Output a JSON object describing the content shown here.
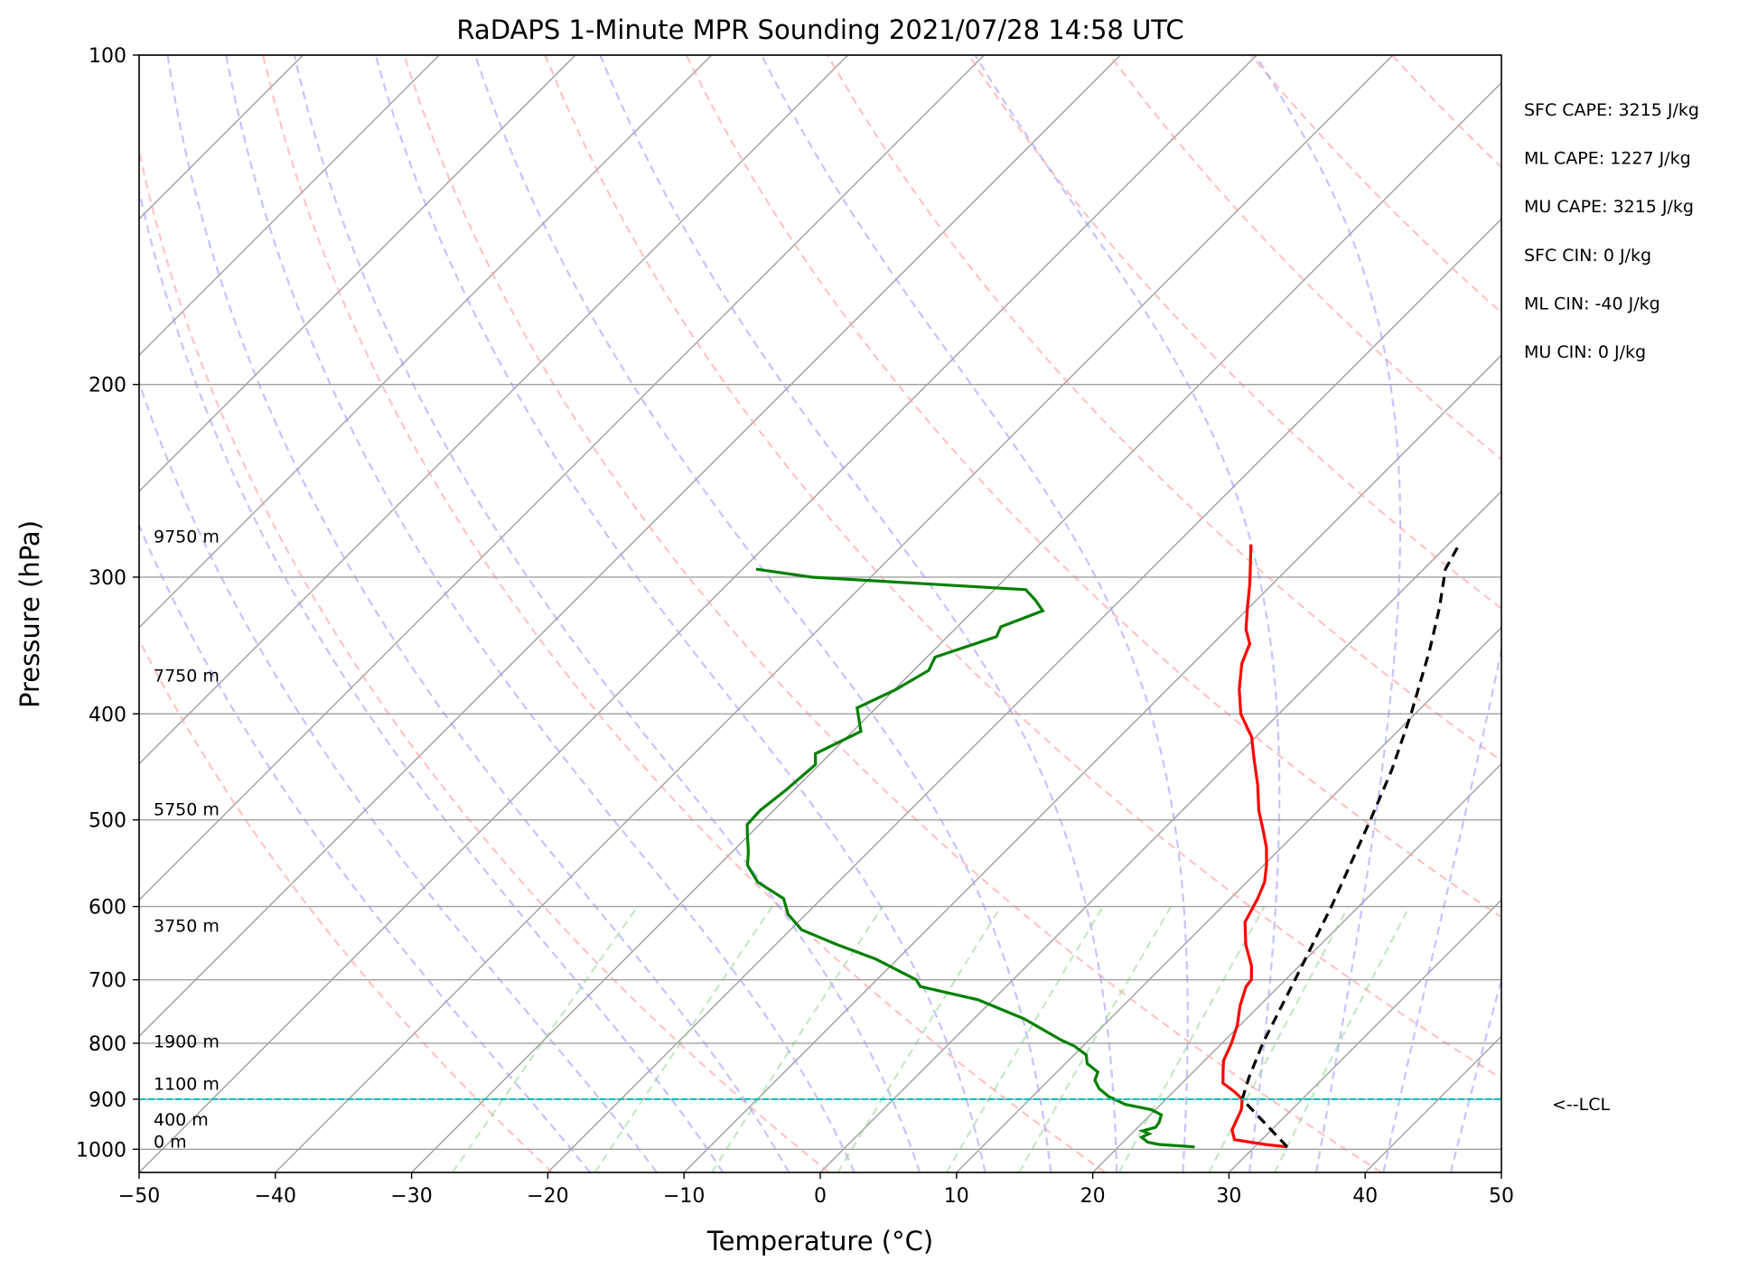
{
  "chart_data": {
    "type": "line",
    "subtype": "skew-t log-p diagram",
    "title": "RaDAPS 1-Minute MPR Sounding 2021/07/28 14:58 UTC",
    "xlabel": "Temperature (°C)",
    "ylabel": "Pressure (hPa)",
    "xlim": [
      -50,
      50
    ],
    "ylim": [
      1050,
      100
    ],
    "y_scale": "log",
    "skew_degrees": 45,
    "x_ticks": [
      -50,
      -40,
      -30,
      -20,
      -10,
      0,
      10,
      20,
      30,
      40,
      50
    ],
    "y_ticks": [
      1000,
      900,
      800,
      700,
      600,
      500,
      400,
      300,
      200,
      100
    ],
    "grid": "horizontal at pressure ticks",
    "colors": {
      "temperature": "#ff0000",
      "dewpoint": "#008000",
      "parcel": "#000000",
      "lcl_line": "#00bfbf",
      "isotherms": "#a0a0a0",
      "dry_adiabats": "#ff9c9c",
      "moist_adiabats": "#9c9cff",
      "mixing_ratio": "#8cd08c"
    },
    "series": [
      {
        "kind": "temperature",
        "points": [
          [
            32.4,
            995
          ],
          [
            30.6,
            990
          ],
          [
            28.0,
            980
          ],
          [
            27.1,
            960
          ],
          [
            26.3,
            920
          ],
          [
            25.6,
            900
          ],
          [
            24.4,
            885
          ],
          [
            23.0,
            870
          ],
          [
            22.2,
            850
          ],
          [
            21.4,
            830
          ],
          [
            20.7,
            800
          ],
          [
            19.8,
            770
          ],
          [
            18.6,
            740
          ],
          [
            17.6,
            710
          ],
          [
            17.5,
            700
          ],
          [
            16.5,
            680
          ],
          [
            14.5,
            650
          ],
          [
            12.8,
            620
          ],
          [
            12.0,
            590
          ],
          [
            11.3,
            570
          ],
          [
            10.2,
            550
          ],
          [
            8.9,
            530
          ],
          [
            7.3,
            510
          ],
          [
            5.6,
            490
          ],
          [
            3.7,
            465
          ],
          [
            1.5,
            440
          ],
          [
            -0.3,
            420
          ],
          [
            -2.8,
            400
          ],
          [
            -4.7,
            380
          ],
          [
            -6.4,
            360
          ],
          [
            -7.3,
            345
          ],
          [
            -8.6,
            335
          ],
          [
            -10.1,
            320
          ],
          [
            -11.6,
            305
          ],
          [
            -13.3,
            290
          ],
          [
            -14.5,
            280
          ]
        ]
      },
      {
        "kind": "dewpoint",
        "points": [
          [
            25.6,
            995
          ],
          [
            22.8,
            990
          ],
          [
            21.8,
            985
          ],
          [
            21.0,
            975
          ],
          [
            21.3,
            968
          ],
          [
            20.6,
            962
          ],
          [
            21.3,
            955
          ],
          [
            21.2,
            945
          ],
          [
            20.8,
            930
          ],
          [
            19.7,
            920
          ],
          [
            17.4,
            910
          ],
          [
            15.6,
            895
          ],
          [
            14.3,
            880
          ],
          [
            13.4,
            865
          ],
          [
            13.0,
            850
          ],
          [
            11.6,
            835
          ],
          [
            10.9,
            820
          ],
          [
            9.4,
            805
          ],
          [
            8.0,
            795
          ],
          [
            3.7,
            760
          ],
          [
            -1.1,
            730
          ],
          [
            -6.3,
            710
          ],
          [
            -7.1,
            700
          ],
          [
            -11.6,
            670
          ],
          [
            -15.5,
            650
          ],
          [
            -19.2,
            630
          ],
          [
            -21.3,
            610
          ],
          [
            -22.8,
            590
          ],
          [
            -25.9,
            570
          ],
          [
            -27.9,
            550
          ],
          [
            -28.8,
            535
          ],
          [
            -30.2,
            515
          ],
          [
            -30.9,
            505
          ],
          [
            -31.0,
            490
          ],
          [
            -30.6,
            470
          ],
          [
            -30.3,
            445
          ],
          [
            -31.1,
            435
          ],
          [
            -29.4,
            415
          ],
          [
            -31.4,
            395
          ],
          [
            -29.9,
            380
          ],
          [
            -28.9,
            365
          ],
          [
            -29.4,
            355
          ],
          [
            -26.4,
            340
          ],
          [
            -26.8,
            333
          ],
          [
            -24.9,
            322
          ],
          [
            -26.2,
            315
          ],
          [
            -27.7,
            308
          ],
          [
            -44.3,
            300
          ],
          [
            -49.0,
            295
          ]
        ]
      },
      {
        "kind": "parcel",
        "points": [
          [
            32.4,
            995
          ],
          [
            25.6,
            900
          ],
          [
            24.5,
            860
          ],
          [
            23.0,
            800
          ],
          [
            20.7,
            700
          ],
          [
            18.0,
            600
          ],
          [
            14.5,
            500
          ],
          [
            12.4,
            450
          ],
          [
            9.7,
            400
          ],
          [
            6.4,
            350
          ],
          [
            4.0,
            320
          ],
          [
            1.6,
            295
          ],
          [
            0.9,
            282
          ]
        ]
      }
    ],
    "lcl": {
      "pressure": 900,
      "label": "<--LCL"
    },
    "height_labels": [
      {
        "text": "0 m",
        "pressure": 1000
      },
      {
        "text": "400 m",
        "pressure": 955
      },
      {
        "text": "1100 m",
        "pressure": 886
      },
      {
        "text": "1900 m",
        "pressure": 810
      },
      {
        "text": "3750 m",
        "pressure": 635
      },
      {
        "text": "5750 m",
        "pressure": 497
      },
      {
        "text": "7750 m",
        "pressure": 375
      },
      {
        "text": "9750 m",
        "pressure": 280
      }
    ],
    "annotations": [
      "SFC CAPE: 3215 J/kg",
      "ML CAPE: 1227 J/kg",
      "MU CAPE: 3215 J/kg",
      "SFC CIN: 0 J/kg",
      "ML CIN: -40 J/kg",
      "MU CIN: 0 J/kg"
    ],
    "dry_adiabat_thetas_K": [
      250,
      270,
      290,
      310,
      330,
      350,
      370,
      390,
      410,
      430,
      450,
      470,
      490,
      510,
      530
    ],
    "moist_adiabat_temps_C": [
      -20,
      -15,
      -10,
      -5,
      0,
      5,
      10,
      15,
      20,
      25,
      30,
      35,
      40,
      45
    ],
    "mixing_ratio_values_gkg": [
      0.4,
      1,
      2,
      4,
      7,
      10,
      16,
      24,
      32
    ]
  }
}
